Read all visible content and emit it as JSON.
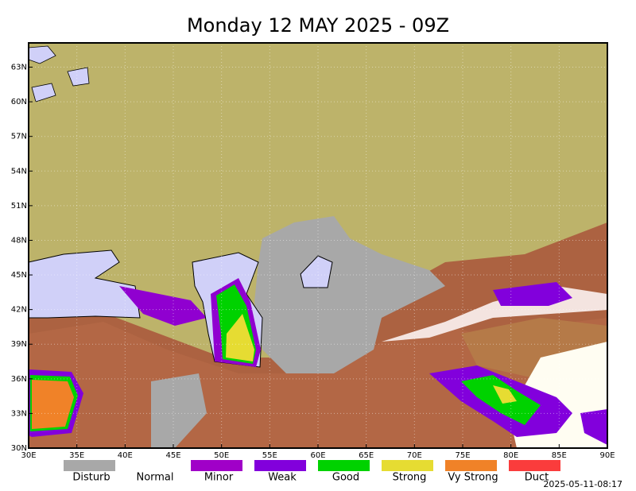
{
  "map": {
    "title": "Monday 12 MAY 2025 - 09Z",
    "timestamp": "2025-05-11-08:17",
    "xlim": [
      30,
      90
    ],
    "ylim": [
      30,
      65.1
    ],
    "xticks": [
      {
        "value": 30,
        "label": "30E"
      },
      {
        "value": 35,
        "label": "35E"
      },
      {
        "value": 40,
        "label": "40E"
      },
      {
        "value": 45,
        "label": "45E"
      },
      {
        "value": 50,
        "label": "50E"
      },
      {
        "value": 55,
        "label": "55E"
      },
      {
        "value": 60,
        "label": "60E"
      },
      {
        "value": 65,
        "label": "65E"
      },
      {
        "value": 70,
        "label": "70E"
      },
      {
        "value": 75,
        "label": "75E"
      },
      {
        "value": 80,
        "label": "80E"
      },
      {
        "value": 85,
        "label": "85E"
      },
      {
        "value": 90,
        "label": "90E"
      }
    ],
    "yticks": [
      {
        "value": 30,
        "label": "30N"
      },
      {
        "value": 33,
        "label": "33N"
      },
      {
        "value": 36,
        "label": "36N"
      },
      {
        "value": 39,
        "label": "39N"
      },
      {
        "value": 42,
        "label": "42N"
      },
      {
        "value": 45,
        "label": "45N"
      },
      {
        "value": 48,
        "label": "48N"
      },
      {
        "value": 51,
        "label": "51N"
      },
      {
        "value": 54,
        "label": "54N"
      },
      {
        "value": 57,
        "label": "57N"
      },
      {
        "value": 60,
        "label": "60N"
      },
      {
        "value": 63,
        "label": "63N"
      }
    ],
    "legend": [
      {
        "name": "Disturb",
        "color": "#a8a8a8"
      },
      {
        "name": "Normal",
        "color": "#ffffff"
      },
      {
        "name": "Minor",
        "color": "#a000c8"
      },
      {
        "name": "Weak",
        "color": "#8200dc"
      },
      {
        "name": "Good",
        "color": "#00d200"
      },
      {
        "name": "Strong",
        "color": "#e6dc32"
      },
      {
        "name": "Vy Strong",
        "color": "#f08228"
      },
      {
        "name": "Duct",
        "color": "#fa3c3c"
      }
    ]
  }
}
